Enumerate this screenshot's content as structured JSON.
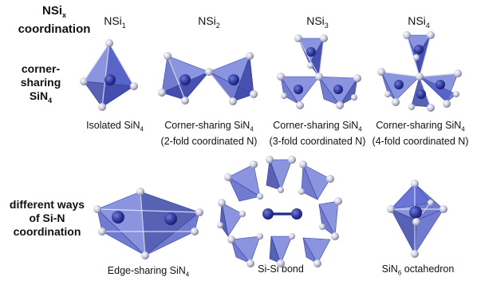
{
  "header": {
    "title_base": "NSi",
    "title_sub": "x",
    "title_line2": "coordination"
  },
  "columns": [
    {
      "base": "NSi",
      "sub": "1"
    },
    {
      "base": "NSi",
      "sub": "2"
    },
    {
      "base": "NSi",
      "sub": "3"
    },
    {
      "base": "NSi",
      "sub": "4"
    }
  ],
  "rows": [
    {
      "line1": "corner-",
      "line2": "sharing",
      "line3_base": "SiN",
      "line3_sub": "4"
    },
    {
      "line1": "different ways",
      "line2": "of Si-N",
      "line3": "coordination"
    }
  ],
  "captions_row1": [
    {
      "line1_base": "Isolated SiN",
      "line1_sub": "4",
      "line2": ""
    },
    {
      "line1_base": "Corner-sharing SiN",
      "line1_sub": "4",
      "line2": "(2-fold coordinated N)"
    },
    {
      "line1_base": "Corner-sharing SiN",
      "line1_sub": "4",
      "line2": "(3-fold coordinated N)"
    },
    {
      "line1_base": "Corner-sharing SiN",
      "line1_sub": "4",
      "line2": "(4-fold coordinated N)"
    }
  ],
  "captions_row2": [
    {
      "base": "Edge-sharing SiN",
      "sub": "4",
      "after": ""
    },
    {
      "base": "Si-Si bond",
      "sub": "",
      "after": ""
    },
    {
      "base": "SiN",
      "sub": "6",
      "after": " octahedron"
    }
  ],
  "colors": {
    "polyhedron": "#4a57c2",
    "atom": "#c9cbe0",
    "si_atom": "#2a3596"
  }
}
